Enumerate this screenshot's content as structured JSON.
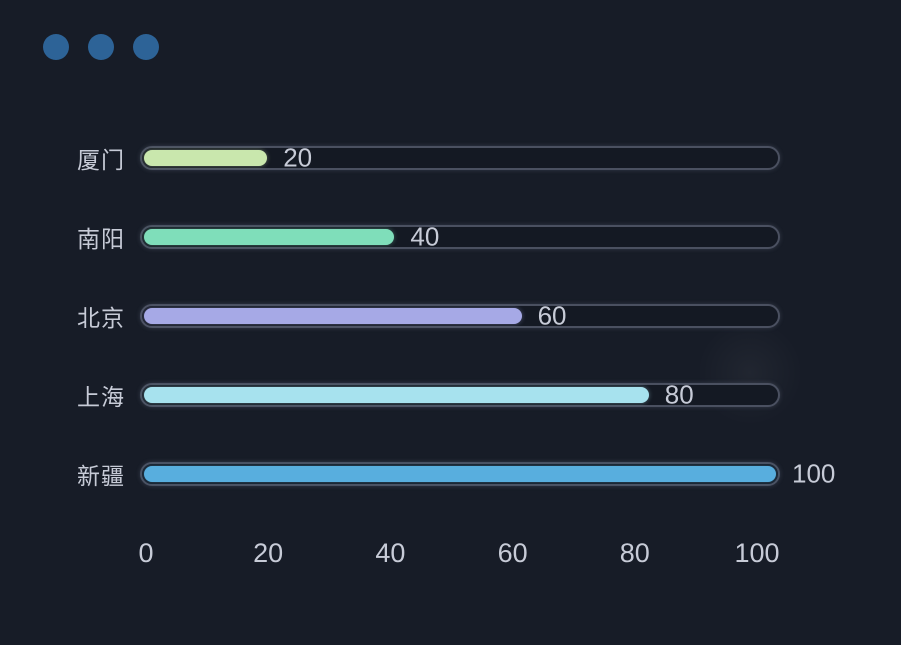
{
  "window": {
    "background": "#171c27",
    "controls": {
      "count": 3,
      "dot_color": "#2d6397"
    }
  },
  "chart_data": {
    "type": "bar",
    "orientation": "horizontal",
    "title": "",
    "xlabel": "",
    "ylabel": "",
    "categories": [
      "厦门",
      "南阳",
      "北京",
      "上海",
      "新疆"
    ],
    "values": [
      20,
      40,
      60,
      80,
      100
    ],
    "value_labels": [
      "20",
      "40",
      "60",
      "80",
      "100"
    ],
    "bar_colors": [
      "#c9e7ad",
      "#7fdeba",
      "#a6a9e6",
      "#a7e2ee",
      "#58aede"
    ],
    "axis": {
      "min": 0,
      "max": 100,
      "ticks": [
        0,
        20,
        40,
        60,
        80,
        100
      ]
    },
    "grid": false,
    "legend": false,
    "track_color": "#141923",
    "track_border_color": "#4a5060",
    "label_color": "#c7cbd7"
  }
}
